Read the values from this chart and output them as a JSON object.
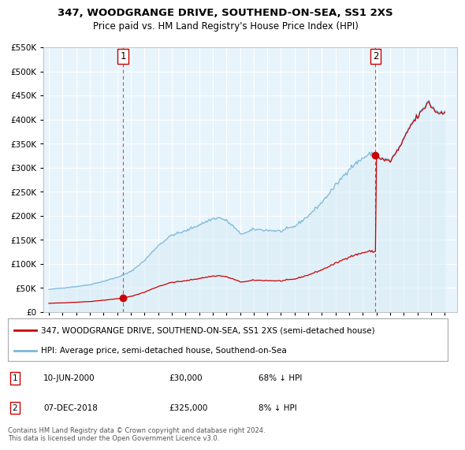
{
  "title": "347, WOODGRANGE DRIVE, SOUTHEND-ON-SEA, SS1 2XS",
  "subtitle": "Price paid vs. HM Land Registry's House Price Index (HPI)",
  "legend_line1": "347, WOODGRANGE DRIVE, SOUTHEND-ON-SEA, SS1 2XS (semi-detached house)",
  "legend_line2": "HPI: Average price, semi-detached house, Southend-on-Sea",
  "sale1_date": "10-JUN-2000",
  "sale1_price": 30000,
  "sale1_pct": "68% ↓ HPI",
  "sale1_label": "1",
  "sale2_date": "07-DEC-2018",
  "sale2_price": 325000,
  "sale2_pct": "8% ↓ HPI",
  "sale2_label": "2",
  "footer": "Contains HM Land Registry data © Crown copyright and database right 2024.\nThis data is licensed under the Open Government Licence v3.0.",
  "hpi_color": "#7ab8d9",
  "hpi_fill_color": "#daedf7",
  "sale_color": "#cc0000",
  "vline_color": "#cc0000",
  "background_color": "#ffffff",
  "plot_bg_color": "#e8f4fb",
  "grid_color": "#ffffff",
  "ylim": [
    0,
    550000
  ],
  "yticks": [
    0,
    50000,
    100000,
    150000,
    200000,
    250000,
    300000,
    350000,
    400000,
    450000,
    500000,
    550000
  ],
  "sale1_x": 2000.44,
  "sale2_x": 2018.92,
  "hpi_base_index": 100,
  "note_fontsize": 7
}
